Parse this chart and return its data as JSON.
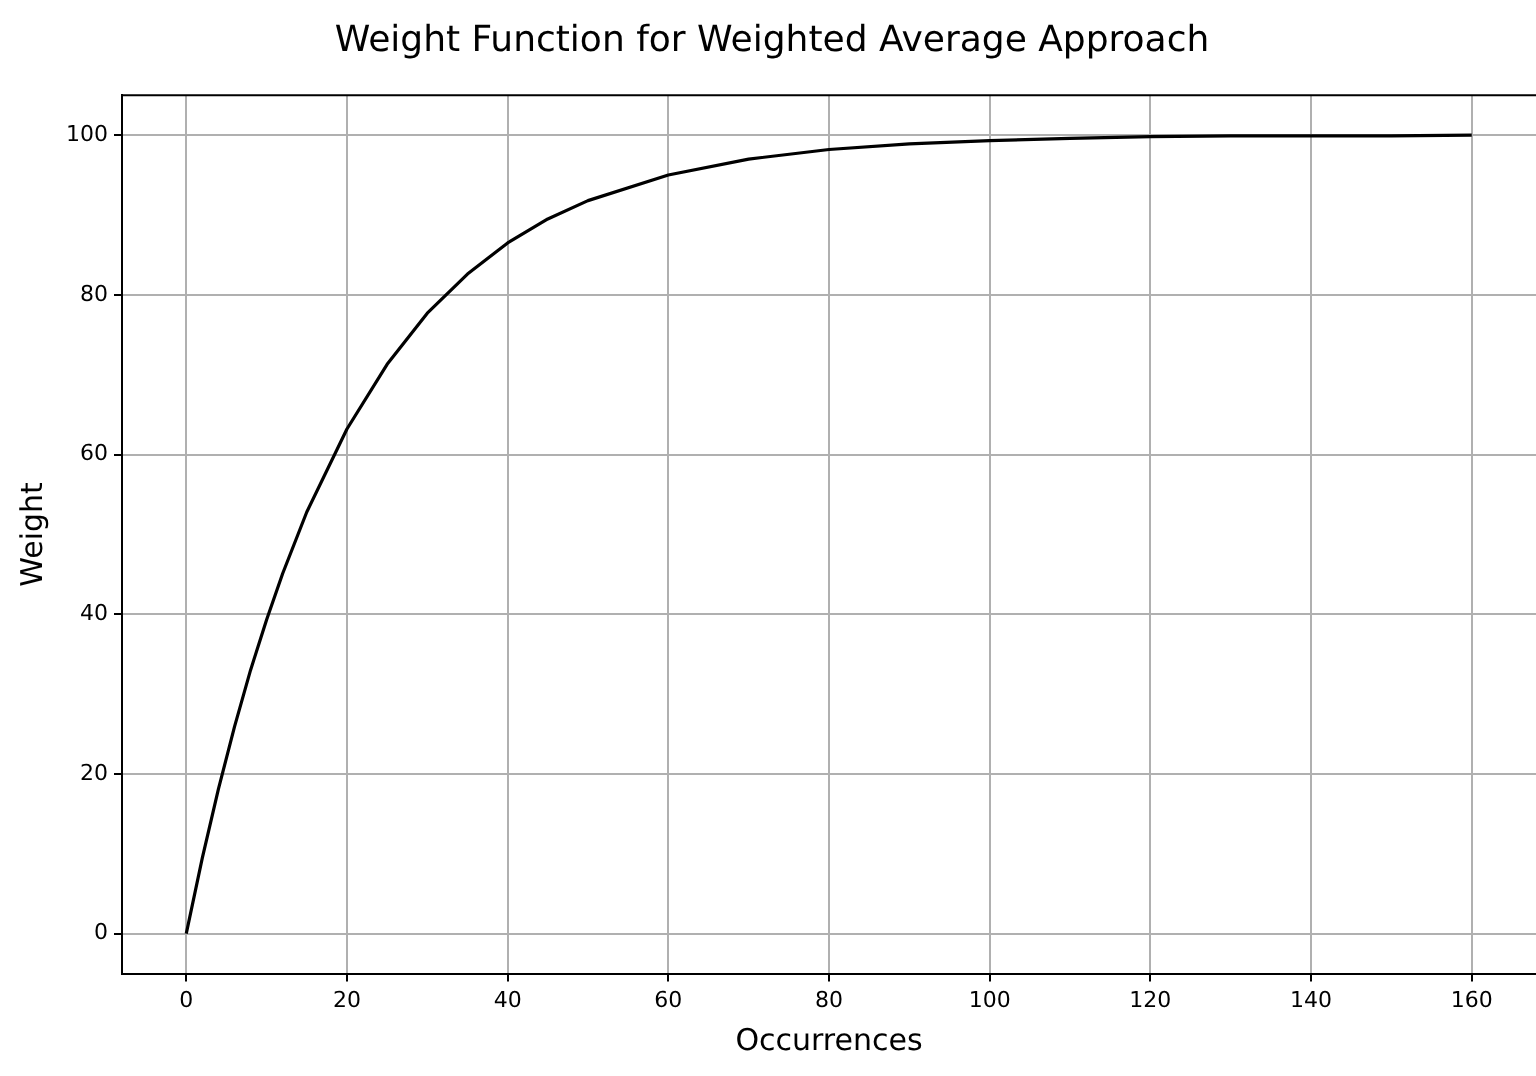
{
  "chart_data": {
    "type": "line",
    "title": "Weight Function for Weighted Average Approach",
    "xlabel": "Occurrences",
    "ylabel": "Weight",
    "x": [
      0,
      2,
      4,
      6,
      8,
      10,
      12,
      15,
      20,
      25,
      30,
      35,
      40,
      45,
      50,
      60,
      70,
      80,
      90,
      100,
      110,
      120,
      130,
      140,
      150,
      160
    ],
    "series": [
      {
        "color": "#000000",
        "values": [
          0,
          9.5,
          18.1,
          25.9,
          33.0,
          39.3,
          45.1,
          52.8,
          63.2,
          71.3,
          77.7,
          82.6,
          86.5,
          89.5,
          91.8,
          95.0,
          97.0,
          98.2,
          98.9,
          99.3,
          99.6,
          99.8,
          99.9,
          99.9,
          99.9,
          100.0
        ]
      }
    ],
    "xlim": [
      -8,
      168
    ],
    "xticks": [
      0,
      20,
      40,
      60,
      80,
      100,
      120,
      140,
      160
    ],
    "ylim": [
      -5,
      105
    ],
    "yticks": [
      0,
      20,
      40,
      60,
      80,
      100
    ],
    "grid": true,
    "legend": false,
    "marker": "none",
    "line_style": "solid"
  }
}
